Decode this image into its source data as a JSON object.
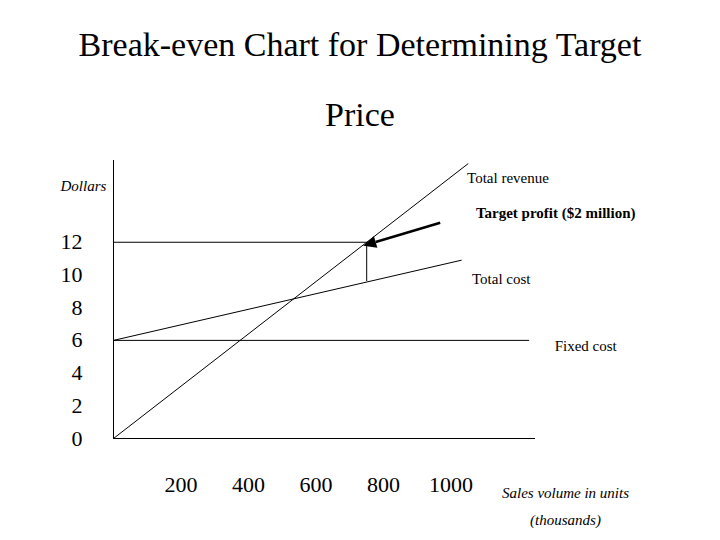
{
  "chart_data": {
    "type": "line",
    "title": "Break-even Chart for Determining Target Price",
    "ylabel": "Dollars",
    "xlabel": "Sales volume in units (thousands)",
    "xlim": [
      0,
      1250
    ],
    "xticks": [
      200,
      400,
      600,
      800,
      1000
    ],
    "ylim": [
      0,
      17
    ],
    "yticks": [
      0,
      2,
      4,
      6,
      8,
      10,
      12
    ],
    "grid": false,
    "series": [
      {
        "name": "Total revenue",
        "color": "#000000",
        "x": [
          0,
          1050
        ],
        "values": [
          0,
          16.8
        ]
      },
      {
        "name": "Total cost",
        "color": "#000000",
        "x": [
          0,
          1030
        ],
        "values": [
          6,
          10.9
        ]
      },
      {
        "name": "Fixed cost",
        "color": "#000000",
        "x": [
          0,
          1230
        ],
        "values": [
          6,
          6
        ]
      }
    ],
    "annotations": [
      {
        "text": "Target profit ($2 million)",
        "x": 750,
        "y": 12,
        "y_low": 9.6
      }
    ]
  }
}
